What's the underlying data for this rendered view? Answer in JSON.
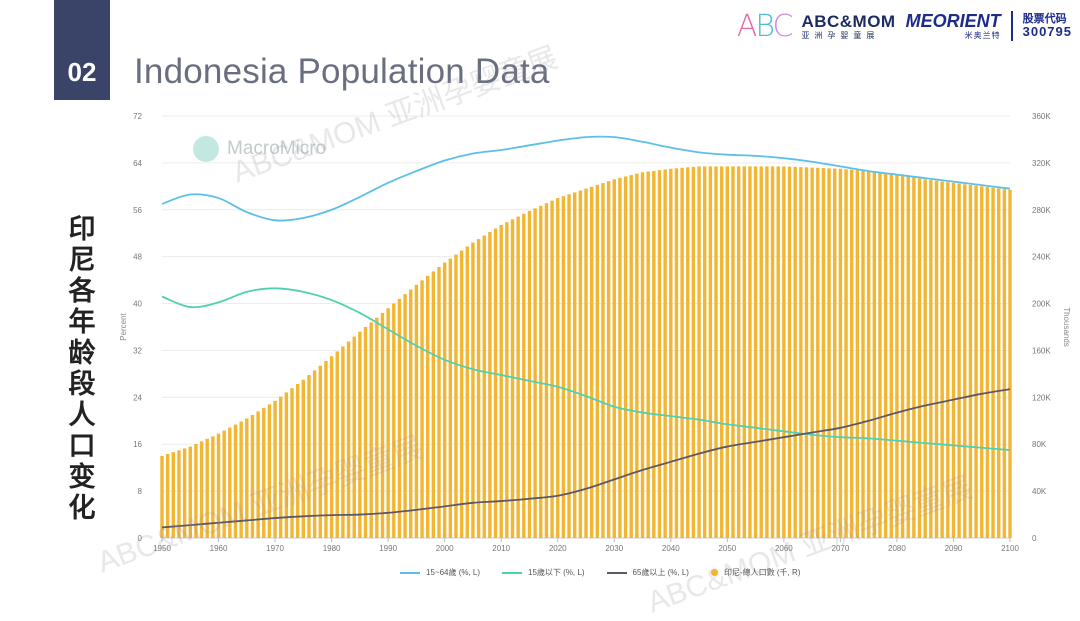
{
  "header": {
    "section_number": "02",
    "title": "Indonesia Population Data",
    "side_title": "印尼各年龄段人口变化"
  },
  "logos": {
    "abc_letters": [
      "A",
      "B",
      "C"
    ],
    "abc_name": "ABC&MOM",
    "abc_sub": "亚洲孕婴童展",
    "meorient_name": "MEORIENT",
    "meorient_sub": "米奥兰特",
    "stock_label": "股票代码",
    "stock_code": "300795"
  },
  "watermarks": {
    "macromicro": "MacroMicro",
    "abc_wm": "ABC&MOM 亚洲孕婴童展"
  },
  "chart_data": {
    "type": "line",
    "xlabel": "",
    "ylabel_left": "Percent",
    "ylabel_right": "Thousands",
    "x_ticks": [
      1950,
      1960,
      1970,
      1980,
      1990,
      2000,
      2010,
      2020,
      2030,
      2040,
      2050,
      2060,
      2070,
      2080,
      2090,
      2100
    ],
    "x_tick_labels": [
      "1950",
      "1960",
      "1970",
      "1980",
      "1990",
      "2000",
      "2010",
      "2020",
      "2030",
      "2040",
      "2050",
      "2060",
      "2070",
      "2080",
      "2090",
      "2100"
    ],
    "xlim": [
      1950,
      2100
    ],
    "ylim_left": [
      0,
      72
    ],
    "ylim_right": [
      0,
      360000
    ],
    "y_left_ticks": [
      0,
      8,
      16,
      24,
      32,
      40,
      48,
      56,
      64,
      72
    ],
    "y_left_tick_labels": [
      "0",
      "8",
      "16",
      "24",
      "32",
      "40",
      "48",
      "56",
      "64",
      "72"
    ],
    "y_right_ticks": [
      0,
      40000,
      80000,
      120000,
      160000,
      200000,
      240000,
      280000,
      320000,
      360000
    ],
    "y_right_tick_labels": [
      "0",
      "40K",
      "80K",
      "120K",
      "160K",
      "200K",
      "240K",
      "280K",
      "320K",
      "360K"
    ],
    "grid": true,
    "legend_position": "bottom",
    "series": [
      {
        "name": "15~64歲 (%, L)",
        "kind": "line",
        "axis": "left",
        "color": "#5bc0e8",
        "x": [
          1950,
          1955,
          1960,
          1965,
          1970,
          1975,
          1980,
          1985,
          1990,
          1995,
          2000,
          2005,
          2010,
          2015,
          2020,
          2025,
          2030,
          2035,
          2040,
          2045,
          2050,
          2055,
          2060,
          2065,
          2070,
          2075,
          2080,
          2085,
          2090,
          2095,
          2100
        ],
        "y": [
          57.0,
          58.6,
          58.0,
          55.6,
          54.2,
          54.6,
          56.0,
          58.2,
          60.6,
          62.6,
          64.4,
          65.6,
          66.2,
          67.0,
          67.8,
          68.4,
          68.4,
          67.6,
          66.6,
          65.8,
          65.4,
          65.2,
          64.8,
          64.2,
          63.4,
          62.6,
          62.0,
          61.4,
          60.8,
          60.2,
          59.6
        ]
      },
      {
        "name": "15歲以下 (%, L)",
        "kind": "line",
        "axis": "left",
        "color": "#4fd1b0",
        "x": [
          1950,
          1955,
          1960,
          1965,
          1970,
          1975,
          1980,
          1985,
          1990,
          1995,
          2000,
          2005,
          2010,
          2015,
          2020,
          2025,
          2030,
          2035,
          2040,
          2045,
          2050,
          2055,
          2060,
          2065,
          2070,
          2075,
          2080,
          2085,
          2090,
          2095,
          2100
        ],
        "y": [
          41.2,
          39.4,
          40.2,
          42.0,
          42.6,
          42.0,
          40.6,
          38.4,
          35.6,
          32.8,
          30.4,
          28.8,
          27.8,
          26.8,
          25.8,
          24.2,
          22.4,
          21.4,
          20.8,
          20.2,
          19.4,
          18.8,
          18.2,
          17.6,
          17.2,
          17.0,
          16.6,
          16.2,
          15.8,
          15.4,
          15.0
        ]
      },
      {
        "name": "65歲以上 (%, L)",
        "kind": "line",
        "axis": "left",
        "color": "#5a5a66",
        "x": [
          1950,
          1955,
          1960,
          1965,
          1970,
          1975,
          1980,
          1985,
          1990,
          1995,
          2000,
          2005,
          2010,
          2015,
          2020,
          2025,
          2030,
          2035,
          2040,
          2045,
          2050,
          2055,
          2060,
          2065,
          2070,
          2075,
          2080,
          2085,
          2090,
          2095,
          2100
        ],
        "y": [
          1.8,
          2.2,
          2.6,
          3.0,
          3.4,
          3.7,
          3.9,
          4.0,
          4.3,
          4.8,
          5.4,
          6.0,
          6.3,
          6.7,
          7.2,
          8.4,
          10.0,
          11.6,
          13.0,
          14.4,
          15.6,
          16.4,
          17.2,
          18.0,
          18.8,
          20.0,
          21.4,
          22.6,
          23.6,
          24.6,
          25.4
        ]
      },
      {
        "name": "印尼-總人口數 (千, R)",
        "kind": "bar",
        "axis": "right",
        "color": "#f2b632",
        "x": [
          1950,
          1955,
          1960,
          1965,
          1970,
          1975,
          1980,
          1985,
          1990,
          1995,
          2000,
          2005,
          2010,
          2015,
          2020,
          2025,
          2030,
          2035,
          2040,
          2045,
          2050,
          2055,
          2060,
          2065,
          2070,
          2075,
          2080,
          2085,
          2090,
          2095,
          2100
        ],
        "y": [
          70000,
          78000,
          89000,
          102000,
          117000,
          135000,
          155000,
          176000,
          196000,
          216000,
          235000,
          252000,
          267000,
          279000,
          290000,
          298000,
          306000,
          312000,
          315000,
          317000,
          317000,
          317000,
          317000,
          316000,
          315000,
          313000,
          310000,
          306000,
          303000,
          300000,
          297000
        ]
      }
    ]
  }
}
